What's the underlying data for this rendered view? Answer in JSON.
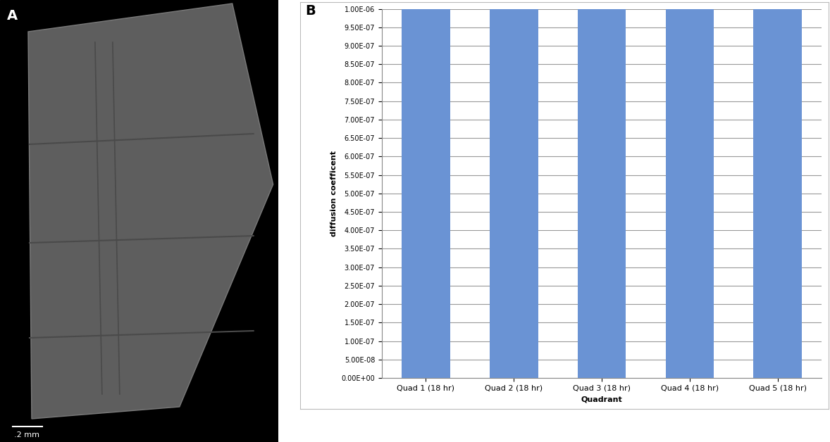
{
  "panel_labels": [
    "A",
    "B"
  ],
  "image_panel": {
    "scale_bar": ".2 mm"
  },
  "chart_data": {
    "type": "bar",
    "xlabel": "Quadrant",
    "ylabel": "diffusion coefficent",
    "categories": [
      "Quad 1 (18 hr)",
      "Quad 2 (18 hr)",
      "Quad 3 (18 hr)",
      "Quad 4 (18 hr)",
      "Quad 5 (18 hr)"
    ],
    "values": [
      1e-06,
      1e-06,
      1e-06,
      1e-06,
      1e-06
    ],
    "color": "#6a93d4",
    "ylim": [
      0,
      1e-06
    ],
    "yticks": [
      {
        "value": 0,
        "label": "0.00E+00"
      },
      {
        "value": 5e-08,
        "label": "5.00E-08"
      },
      {
        "value": 1e-07,
        "label": "1.00E-07"
      },
      {
        "value": 1.5e-07,
        "label": "1.50E-07"
      },
      {
        "value": 2e-07,
        "label": "2.00E-07"
      },
      {
        "value": 2.5e-07,
        "label": "2.50E-07"
      },
      {
        "value": 3e-07,
        "label": "3.00E-07"
      },
      {
        "value": 3.5e-07,
        "label": "3.50E-07"
      },
      {
        "value": 4e-07,
        "label": "4.00E-07"
      },
      {
        "value": 4.5e-07,
        "label": "4.50E-07"
      },
      {
        "value": 5e-07,
        "label": "5.00E-07"
      },
      {
        "value": 5.5e-07,
        "label": "5.50E-07"
      },
      {
        "value": 6e-07,
        "label": "6.00E-07"
      },
      {
        "value": 6.5e-07,
        "label": "6.50E-07"
      },
      {
        "value": 7e-07,
        "label": "7.00E-07"
      },
      {
        "value": 7.5e-07,
        "label": "7.50E-07"
      },
      {
        "value": 8e-07,
        "label": "8.00E-07"
      },
      {
        "value": 8.5e-07,
        "label": "8.50E-07"
      },
      {
        "value": 9e-07,
        "label": "9.00E-07"
      },
      {
        "value": 9.5e-07,
        "label": "9.50E-07"
      },
      {
        "value": 1e-06,
        "label": "1.00E-06"
      }
    ],
    "grid": true
  }
}
